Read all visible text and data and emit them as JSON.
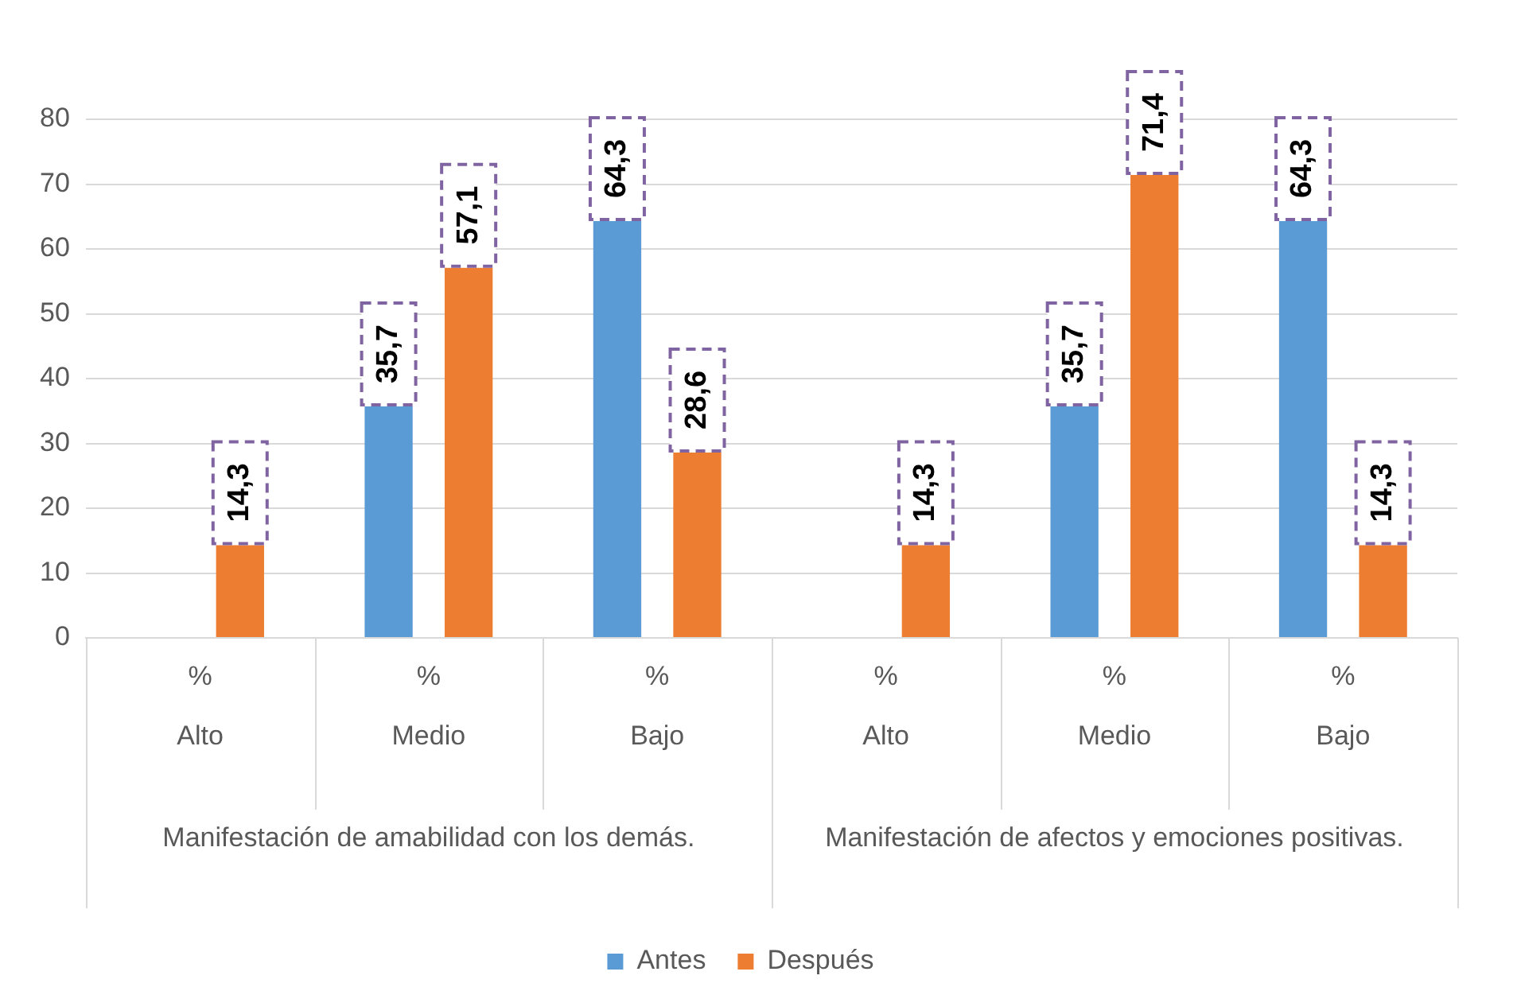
{
  "chart_data": {
    "type": "bar",
    "categories": [
      "%\nAlto",
      "%\nMedio",
      "%\nBajo",
      "%\nAlto",
      "%\nMedio",
      "%\nBajo"
    ],
    "series": [
      {
        "name": "Antes",
        "color": "#5b9bd5",
        "values": [
          null,
          35.7,
          64.3,
          null,
          35.7,
          64.3
        ],
        "value_labels": [
          null,
          "35,7",
          "64,3",
          null,
          "35,7",
          "64,3"
        ]
      },
      {
        "name": "Después",
        "color": "#ed7d31",
        "values": [
          14.3,
          57.1,
          28.6,
          14.3,
          71.4,
          14.3
        ],
        "value_labels": [
          "14,3",
          "57,1",
          "28,6",
          "14,3",
          "71,4",
          "14,3"
        ]
      }
    ],
    "annotations": [
      "Manifestación de amabilidad con los demás.",
      "Manifestación de afectos y emociones positivas."
    ],
    "ylim": [
      0,
      80
    ],
    "yticks": [
      0,
      10,
      20,
      30,
      40,
      50,
      60,
      70,
      80
    ],
    "grid": "y",
    "legend": "bottom"
  }
}
